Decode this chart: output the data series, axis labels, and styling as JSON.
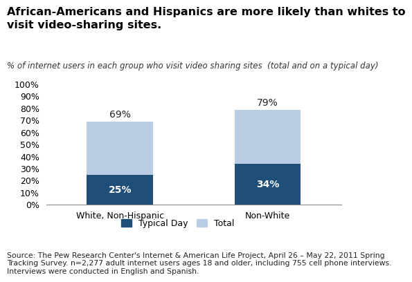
{
  "title": "African-Americans and Hispanics are more likely than whites to\nvisit video-sharing sites.",
  "subtitle": "% of internet users in each group who visit video sharing sites  (total and on a typical day)",
  "categories": [
    "White, Non-Hispanic",
    "Non-White"
  ],
  "typical_day": [
    25,
    34
  ],
  "total": [
    69,
    79
  ],
  "typical_day_color": "#1F4E79",
  "total_color": "#B8CCE4",
  "typical_day_label": "Typical Day",
  "total_label": "Total",
  "source_text": "Source: The Pew Research Center's Internet & American Life Project, April 26 – May 22, 2011 Spring\nTracking Survey. n=2,277 adult internet users ages 18 and older, including 755 cell phone interviews.\nInterviews were conducted in English and Spanish.",
  "ylim": [
    0,
    100
  ],
  "yticks": [
    0,
    10,
    20,
    30,
    40,
    50,
    60,
    70,
    80,
    90,
    100
  ],
  "title_fontsize": 11.5,
  "subtitle_fontsize": 8.5,
  "source_fontsize": 7.8,
  "label_fontsize": 10,
  "tick_fontsize": 9,
  "bar_width": 0.45
}
